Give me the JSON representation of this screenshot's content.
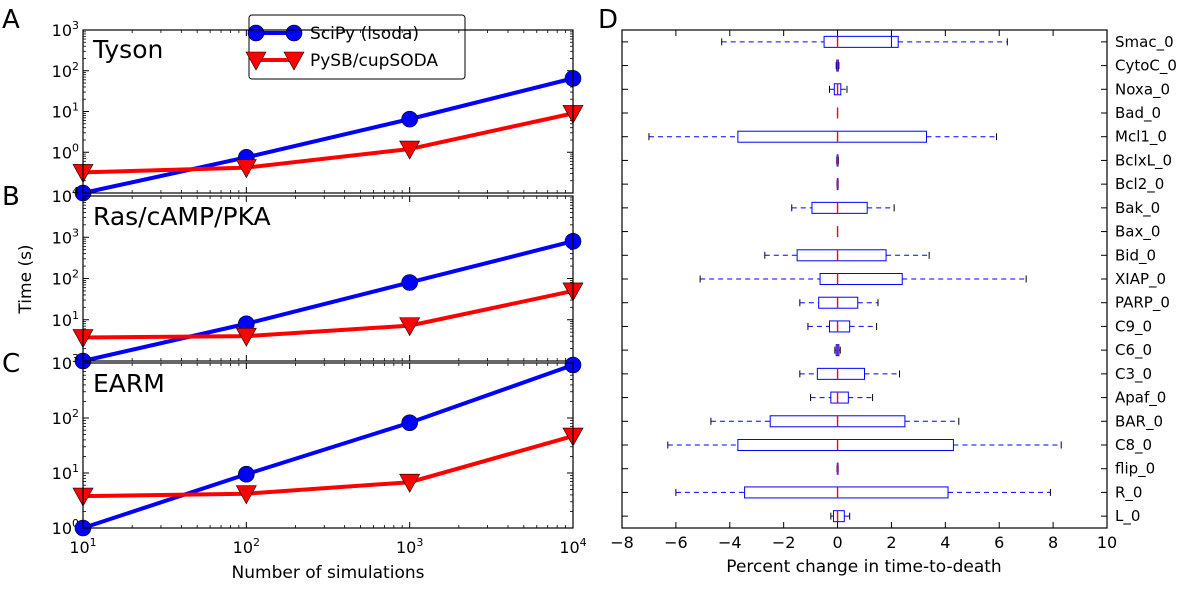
{
  "figure": {
    "panel_letters": [
      "A",
      "B",
      "C",
      "D"
    ],
    "legend": {
      "placement": "top-right-of-panel-A",
      "entries": [
        {
          "label": "SciPy (lsoda)",
          "color": "#0000ff",
          "marker": "circle"
        },
        {
          "label": "PySB/cupSODA",
          "color": "#ff0000",
          "marker": "triangle-down"
        }
      ]
    },
    "shared_ylabel": "Time (s)",
    "shared_xlabel": "Number of simulations"
  },
  "chart_data": [
    {
      "type": "line",
      "panel": "A",
      "title": "Tyson",
      "xscale": "log",
      "yscale": "log",
      "x": [
        10,
        100,
        1000,
        10000
      ],
      "xlim": [
        10,
        10000
      ],
      "ylim": [
        0.1,
        1000
      ],
      "xticks": [
        "10",
        "100",
        "1000",
        "10000"
      ],
      "yticks": [
        {
          "v": 1,
          "base": "10",
          "exp": "0"
        },
        {
          "v": 10,
          "base": "10",
          "exp": "1"
        },
        {
          "v": 100,
          "base": "10",
          "exp": "2"
        },
        {
          "v": 1000,
          "base": "10",
          "exp": "3"
        }
      ],
      "series": [
        {
          "name": "SciPy (lsoda)",
          "color": "#0000ff",
          "values": [
            0.1,
            0.75,
            6.5,
            65
          ]
        },
        {
          "name": "PySB/cupSODA",
          "color": "#ff0000",
          "values": [
            0.32,
            0.42,
            1.2,
            9
          ]
        }
      ]
    },
    {
      "type": "line",
      "panel": "B",
      "title": "Ras/cAMP/PKA",
      "xscale": "log",
      "yscale": "log",
      "x": [
        10,
        100,
        1000,
        10000
      ],
      "xlim": [
        10,
        10000
      ],
      "ylim": [
        1,
        10000
      ],
      "yticks": [
        {
          "v": 10,
          "base": "10",
          "exp": "1"
        },
        {
          "v": 100,
          "base": "10",
          "exp": "2"
        },
        {
          "v": 1000,
          "base": "10",
          "exp": "3"
        },
        {
          "v": 10000,
          "base": "10",
          "exp": "4"
        }
      ],
      "series": [
        {
          "name": "SciPy (lsoda)",
          "color": "#0000ff",
          "values": [
            1,
            8,
            80,
            800
          ]
        },
        {
          "name": "PySB/cupSODA",
          "color": "#ff0000",
          "values": [
            3.7,
            4,
            7.2,
            50
          ]
        }
      ]
    },
    {
      "type": "line",
      "panel": "C",
      "title": "EARM",
      "xscale": "log",
      "yscale": "log",
      "x": [
        10,
        100,
        1000,
        10000
      ],
      "xlim": [
        10,
        10000
      ],
      "ylim": [
        1,
        1000
      ],
      "yticks": [
        {
          "v": 1,
          "base": "10",
          "exp": "0"
        },
        {
          "v": 10,
          "base": "10",
          "exp": "1"
        },
        {
          "v": 100,
          "base": "10",
          "exp": "2"
        },
        {
          "v": 1000,
          "base": "10",
          "exp": "3"
        }
      ],
      "series": [
        {
          "name": "SciPy (lsoda)",
          "color": "#0000ff",
          "values": [
            1,
            9.5,
            82,
            920
          ]
        },
        {
          "name": "PySB/cupSODA",
          "color": "#ff0000",
          "values": [
            3.8,
            4.2,
            6.8,
            47
          ]
        }
      ]
    },
    {
      "type": "box",
      "panel": "D",
      "xlabel": "Percent change in time-to-death",
      "xlim": [
        -8,
        10
      ],
      "xticks": [
        "−8",
        "−6",
        "−4",
        "−2",
        "0",
        "2",
        "4",
        "6",
        "8",
        "10"
      ],
      "box_color": "#0000ff",
      "median_color": "#ff0000",
      "categories": [
        "Smac_0",
        "CytoC_0",
        "Noxa_0",
        "Bad_0",
        "Mcl1_0",
        "BclxL_0",
        "Bcl2_0",
        "Bak_0",
        "Bax_0",
        "Bid_0",
        "XIAP_0",
        "PARP_0",
        "C9_0",
        "C6_0",
        "C3_0",
        "Apaf_0",
        "BAR_0",
        "C8_0",
        "flip_0",
        "R_0",
        "L_0"
      ],
      "boxes": [
        {
          "label": "Smac_0",
          "whislo": -4.3,
          "q1": -0.5,
          "med": 0,
          "q3": 2.25,
          "whishi": 6.3,
          "extra": 2.0
        },
        {
          "label": "CytoC_0",
          "whislo": -0.05,
          "q1": -0.03,
          "med": 0,
          "q3": 0.03,
          "whishi": 0.05
        },
        {
          "label": "Noxa_0",
          "whislo": -0.3,
          "q1": -0.12,
          "med": 0,
          "q3": 0.12,
          "whishi": 0.35
        },
        {
          "label": "Bad_0",
          "whislo": 0,
          "q1": 0,
          "med": 0,
          "q3": 0,
          "whishi": 0
        },
        {
          "label": "Mcl1_0",
          "whislo": -7.0,
          "q1": -3.7,
          "med": 0,
          "q3": 3.3,
          "whishi": 5.9
        },
        {
          "label": "BclxL_0",
          "whislo": -0.03,
          "q1": -0.02,
          "med": 0,
          "q3": 0.02,
          "whishi": 0.03
        },
        {
          "label": "Bcl2_0",
          "whislo": -0.02,
          "q1": -0.01,
          "med": 0,
          "q3": 0.01,
          "whishi": 0.02
        },
        {
          "label": "Bak_0",
          "whislo": -1.7,
          "q1": -0.95,
          "med": 0,
          "q3": 1.1,
          "whishi": 2.1
        },
        {
          "label": "Bax_0",
          "whislo": 0,
          "q1": 0,
          "med": 0,
          "q3": 0,
          "whishi": 0
        },
        {
          "label": "Bid_0",
          "whislo": -2.7,
          "q1": -1.5,
          "med": 0,
          "q3": 1.8,
          "whishi": 3.4
        },
        {
          "label": "XIAP_0",
          "whislo": -5.1,
          "q1": -0.65,
          "med": 0,
          "q3": 2.4,
          "whishi": 7.0
        },
        {
          "label": "PARP_0",
          "whislo": -1.4,
          "q1": -0.7,
          "med": 0,
          "q3": 0.75,
          "whishi": 1.5
        },
        {
          "label": "C9_0",
          "whislo": -1.1,
          "q1": -0.3,
          "med": 0,
          "q3": 0.45,
          "whishi": 1.45
        },
        {
          "label": "C6_0",
          "whislo": -0.1,
          "q1": -0.05,
          "med": 0,
          "q3": 0.05,
          "whishi": 0.1
        },
        {
          "label": "C3_0",
          "whislo": -1.4,
          "q1": -0.75,
          "med": 0,
          "q3": 1.0,
          "whishi": 2.3
        },
        {
          "label": "Apaf_0",
          "whislo": -1.0,
          "q1": -0.25,
          "med": 0,
          "q3": 0.4,
          "whishi": 1.3
        },
        {
          "label": "BAR_0",
          "whislo": -4.7,
          "q1": -2.5,
          "med": 0,
          "q3": 2.5,
          "whishi": 4.5
        },
        {
          "label": "C8_0",
          "whislo": -6.3,
          "q1": -3.7,
          "med": 0,
          "q3": 4.3,
          "whishi": 8.3
        },
        {
          "label": "flip_0",
          "whislo": -0.02,
          "q1": -0.01,
          "med": 0,
          "q3": 0.01,
          "whishi": 0.02
        },
        {
          "label": "R_0",
          "whislo": -6.0,
          "q1": -3.45,
          "med": 0,
          "q3": 4.1,
          "whishi": 7.9
        },
        {
          "label": "L_0",
          "whislo": -0.25,
          "q1": -0.15,
          "med": 0,
          "q3": 0.25,
          "whishi": 0.45
        }
      ]
    }
  ]
}
